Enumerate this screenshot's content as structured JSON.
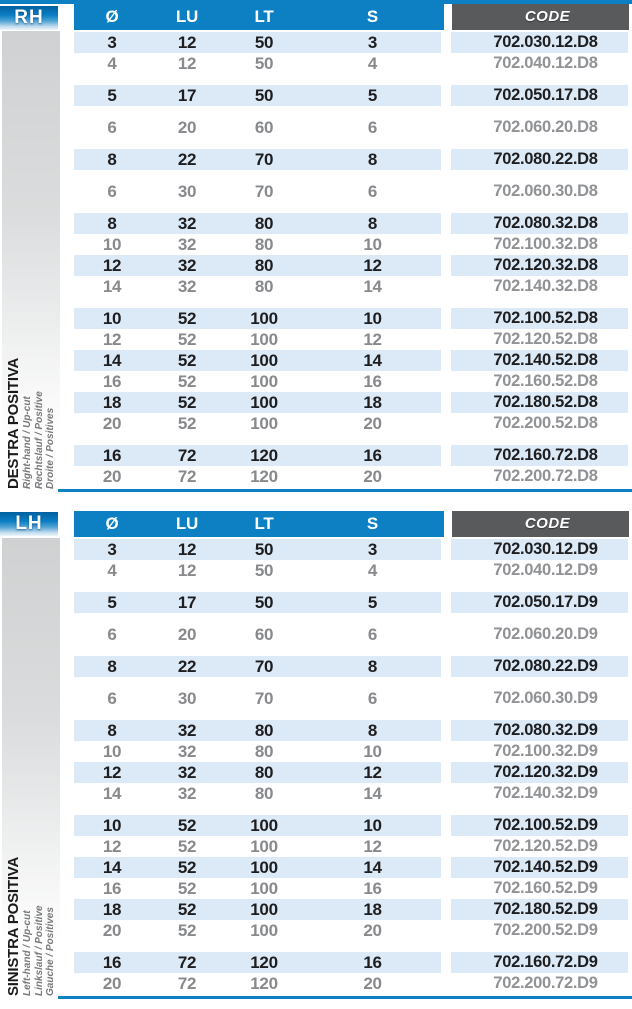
{
  "colors": {
    "accent_blue": "#0c80c2",
    "row_highlight_blue": "#dce9f6",
    "code_band_gray": "#595a5c",
    "text_dark": "#1e1e20",
    "text_gray": "#87898c",
    "placeholder_gray": "#cfd1d2"
  },
  "tables": [
    {
      "tab_label": "RH",
      "side_title": "DESTRA POSITIVA",
      "side_subtitles": [
        "Right-hand / Up-cut",
        "Rechtslauf / Positive",
        "Droite / Positives"
      ],
      "column_headers": [
        "Ø",
        "LU",
        "LT",
        "S"
      ],
      "code_header": "CODE",
      "groups": [
        [
          [
            "3",
            "12",
            "50",
            "3",
            "702.030.12.D8"
          ],
          [
            "4",
            "12",
            "50",
            "4",
            "702.040.12.D8"
          ]
        ],
        [
          [
            "5",
            "17",
            "50",
            "5",
            "702.050.17.D8"
          ]
        ],
        [
          [
            "6",
            "20",
            "60",
            "6",
            "702.060.20.D8"
          ]
        ],
        [
          [
            "8",
            "22",
            "70",
            "8",
            "702.080.22.D8"
          ]
        ],
        [
          [
            "6",
            "30",
            "70",
            "6",
            "702.060.30.D8"
          ]
        ],
        [
          [
            "8",
            "32",
            "80",
            "8",
            "702.080.32.D8"
          ],
          [
            "10",
            "32",
            "80",
            "10",
            "702.100.32.D8"
          ],
          [
            "12",
            "32",
            "80",
            "12",
            "702.120.32.D8"
          ],
          [
            "14",
            "32",
            "80",
            "14",
            "702.140.32.D8"
          ]
        ],
        [
          [
            "10",
            "52",
            "100",
            "10",
            "702.100.52.D8"
          ],
          [
            "12",
            "52",
            "100",
            "12",
            "702.120.52.D8"
          ],
          [
            "14",
            "52",
            "100",
            "14",
            "702.140.52.D8"
          ],
          [
            "16",
            "52",
            "100",
            "16",
            "702.160.52.D8"
          ],
          [
            "18",
            "52",
            "100",
            "18",
            "702.180.52.D8"
          ],
          [
            "20",
            "52",
            "100",
            "20",
            "702.200.52.D8"
          ]
        ],
        [
          [
            "16",
            "72",
            "120",
            "16",
            "702.160.72.D8"
          ],
          [
            "20",
            "72",
            "120",
            "20",
            "702.200.72.D8"
          ]
        ]
      ]
    },
    {
      "tab_label": "LH",
      "side_title": "SINISTRA POSITIVA",
      "side_subtitles": [
        "Left-hand / Up-cut",
        "Linkslauf / Positive",
        "Gauche / Positives"
      ],
      "column_headers": [
        "Ø",
        "LU",
        "LT",
        "S"
      ],
      "code_header": "CODE",
      "groups": [
        [
          [
            "3",
            "12",
            "50",
            "3",
            "702.030.12.D9"
          ],
          [
            "4",
            "12",
            "50",
            "4",
            "702.040.12.D9"
          ]
        ],
        [
          [
            "5",
            "17",
            "50",
            "5",
            "702.050.17.D9"
          ]
        ],
        [
          [
            "6",
            "20",
            "60",
            "6",
            "702.060.20.D9"
          ]
        ],
        [
          [
            "8",
            "22",
            "70",
            "8",
            "702.080.22.D9"
          ]
        ],
        [
          [
            "6",
            "30",
            "70",
            "6",
            "702.060.30.D9"
          ]
        ],
        [
          [
            "8",
            "32",
            "80",
            "8",
            "702.080.32.D9"
          ],
          [
            "10",
            "32",
            "80",
            "10",
            "702.100.32.D9"
          ],
          [
            "12",
            "32",
            "80",
            "12",
            "702.120.32.D9"
          ],
          [
            "14",
            "32",
            "80",
            "14",
            "702.140.32.D9"
          ]
        ],
        [
          [
            "10",
            "52",
            "100",
            "10",
            "702.100.52.D9"
          ],
          [
            "12",
            "52",
            "100",
            "12",
            "702.120.52.D9"
          ],
          [
            "14",
            "52",
            "100",
            "14",
            "702.140.52.D9"
          ],
          [
            "16",
            "52",
            "100",
            "16",
            "702.160.52.D9"
          ],
          [
            "18",
            "52",
            "100",
            "18",
            "702.180.52.D9"
          ],
          [
            "20",
            "52",
            "100",
            "20",
            "702.200.52.D9"
          ]
        ],
        [
          [
            "16",
            "72",
            "120",
            "16",
            "702.160.72.D9"
          ],
          [
            "20",
            "72",
            "120",
            "20",
            "702.200.72.D9"
          ]
        ]
      ]
    }
  ]
}
